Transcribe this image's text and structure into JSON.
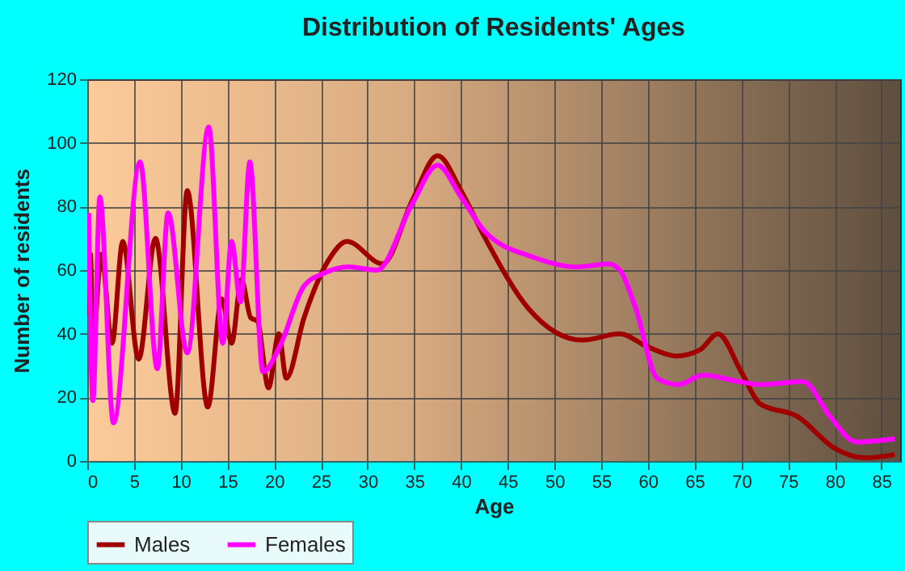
{
  "chart_data": {
    "type": "line",
    "title": "Distribution of Residents' Ages",
    "xlabel": "Age",
    "ylabel": "Number of residents",
    "xlim": [
      0,
      87
    ],
    "xticks": [
      0,
      5,
      10,
      15,
      20,
      25,
      30,
      35,
      40,
      45,
      50,
      55,
      60,
      65,
      70,
      75,
      80,
      85
    ],
    "ylim": [
      0,
      120
    ],
    "yticks": [
      0,
      20,
      40,
      60,
      80,
      100,
      120
    ],
    "grid": true,
    "legend": "bottom",
    "series": [
      {
        "name": "Males",
        "color": "#a00000",
        "x": [
          0.05,
          0.35,
          0.6,
          1.5,
          2.65,
          3.8,
          5.5,
          7.3,
          9.4,
          10.7,
          12.9,
          14.4,
          15.45,
          16.5,
          17.5,
          18.2,
          19.4,
          20.5,
          21.3,
          23.2,
          25.8,
          27.8,
          31.6,
          34.8,
          37.5,
          40,
          42.6,
          47.2,
          53,
          57,
          59.9,
          63,
          65.6,
          67.5,
          70,
          72,
          76,
          80,
          83.2,
          86.4
        ],
        "values": [
          46,
          65,
          37,
          65,
          37,
          69,
          32,
          70,
          15,
          85,
          17,
          51,
          37,
          57,
          45,
          44,
          23,
          40,
          26,
          45,
          63,
          69,
          62,
          82,
          96,
          85,
          70,
          48,
          38,
          40,
          36,
          33,
          35,
          40,
          28,
          18,
          14,
          4,
          1,
          2
        ]
      },
      {
        "name": "Females",
        "color": "#ff00ff",
        "x": [
          0.15,
          0.6,
          1.35,
          2.8,
          5.65,
          7.5,
          8.65,
          10.7,
          13,
          14.5,
          15.45,
          16.4,
          17.4,
          18.8,
          20.6,
          23.2,
          25.3,
          28,
          31,
          34.8,
          37.5,
          40,
          42.6,
          47.8,
          52.4,
          55.8,
          57,
          58.7,
          61,
          63.3,
          65.9,
          69.7,
          72,
          76.6,
          79.5,
          82.3,
          86.4
        ],
        "values": [
          78,
          19,
          83,
          12,
          94,
          29,
          78,
          34,
          105,
          37,
          69,
          50,
          94,
          28,
          36,
          55,
          59,
          61,
          60,
          81,
          93,
          83,
          72,
          64,
          61,
          62,
          60,
          48,
          26,
          24,
          27,
          25,
          24,
          25,
          14,
          6,
          7
        ]
      }
    ]
  }
}
